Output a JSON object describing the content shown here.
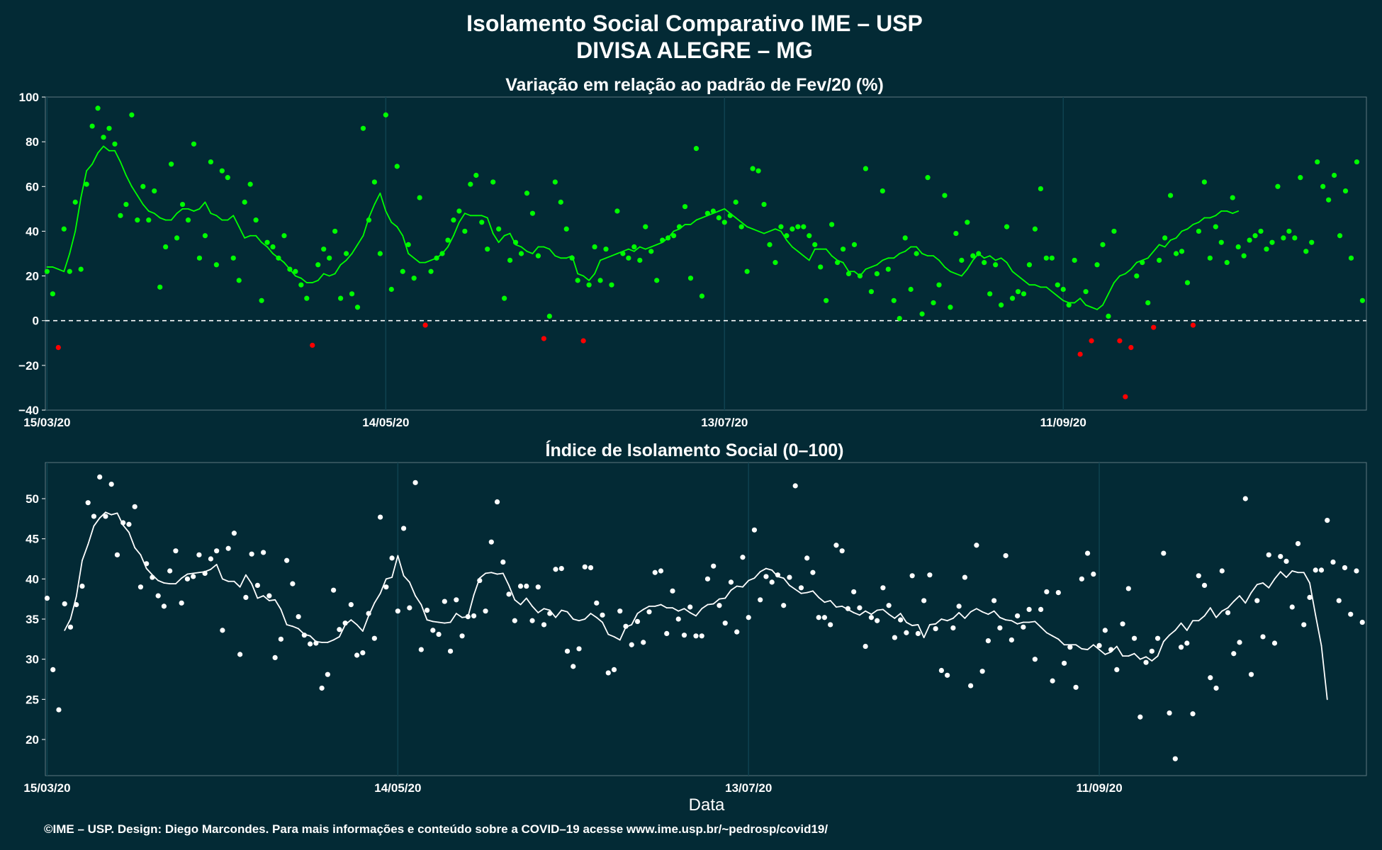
{
  "title": "Isolamento Social Comparativo IME – USP",
  "subtitle": "DIVISA ALEGRE – MG",
  "xlabel": "Data",
  "footer": "©IME – USP. Design: Diego Marcondes. Para mais informações e conteúdo sobre a COVID–19 acesse www.ime.usp.br/~pedrosp/covid19/",
  "colors": {
    "background": "#032a35",
    "positive": "#00ff00",
    "negative": "#ff0000",
    "index": "#ffffff"
  },
  "chart_data": [
    {
      "type": "scatter",
      "title": "Variação em relação ao padrão de Fev/20 (%)",
      "x_ticks": [
        "15/03/20",
        "14/05/20",
        "13/07/20",
        "11/09/20"
      ],
      "y_ticks": [
        "100",
        "80",
        "60",
        "40",
        "20",
        "0",
        "−20",
        "−40"
      ],
      "ylim": [
        -40,
        100
      ],
      "reference_line": 0,
      "grid": true,
      "first_date": "15/03/20",
      "values": [
        22,
        12,
        -12,
        41,
        22,
        53,
        23,
        61,
        87,
        95,
        82,
        86,
        79,
        47,
        52,
        92,
        45,
        60,
        45,
        58,
        15,
        33,
        70,
        37,
        52,
        45,
        79,
        28,
        38,
        71,
        25,
        67,
        64,
        28,
        18,
        53,
        61,
        45,
        9,
        35,
        33,
        28,
        38,
        23,
        22,
        16,
        10,
        -11,
        25,
        32,
        28,
        40,
        10,
        30,
        12,
        6,
        86,
        45,
        62,
        30,
        92,
        14,
        69,
        22,
        34,
        19,
        55,
        -2,
        22,
        28,
        30,
        36,
        45,
        49,
        40,
        61,
        65,
        44,
        32,
        62,
        41,
        10,
        27,
        35,
        30,
        57,
        48,
        29,
        -8,
        2,
        62,
        53,
        41,
        28,
        18,
        -9,
        16,
        33,
        18,
        32,
        16,
        49,
        30,
        28,
        33,
        27,
        42,
        31,
        18,
        36,
        37,
        38,
        42,
        51,
        19,
        77,
        11,
        48,
        49,
        46,
        44,
        47,
        53,
        42,
        22,
        68,
        67,
        52,
        34,
        26,
        42,
        38,
        41,
        42,
        42,
        38,
        34,
        24,
        9,
        43,
        26,
        32,
        21,
        34,
        20,
        68,
        13,
        21,
        58,
        23,
        9,
        1,
        37,
        14,
        30,
        3,
        64,
        8,
        16,
        56,
        6,
        39,
        27,
        44,
        29,
        30,
        26,
        12,
        25,
        7,
        42,
        10,
        13,
        12,
        25,
        41,
        59,
        28,
        28,
        16,
        14,
        7,
        27,
        -15,
        13,
        -9,
        25,
        34,
        2,
        40,
        -9,
        -34,
        -12,
        20,
        26,
        8,
        -3,
        27,
        37,
        56,
        30,
        31,
        17,
        -2,
        40,
        62,
        28,
        42,
        35,
        26,
        55,
        33,
        29,
        36,
        38,
        40,
        32,
        35,
        60,
        37,
        40,
        37,
        64,
        31,
        35,
        71,
        60,
        54,
        65,
        38,
        58,
        28,
        71,
        9
      ],
      "moving_average": [
        24,
        24,
        23,
        22,
        30,
        40,
        55,
        67,
        70,
        75,
        78,
        76,
        76,
        71,
        65,
        60,
        56,
        52,
        49,
        48,
        46,
        45,
        45,
        48,
        50,
        50,
        49,
        50,
        53,
        48,
        47,
        45,
        45,
        47,
        42,
        37,
        38,
        38,
        35,
        33,
        30,
        28,
        26,
        23,
        20,
        19,
        17,
        17,
        18,
        21,
        20,
        21,
        25,
        27,
        30,
        34,
        38,
        46,
        52,
        57,
        49,
        44,
        42,
        38,
        30,
        28,
        26,
        26,
        27,
        28,
        30,
        33,
        38,
        44,
        48,
        47,
        47,
        47,
        46,
        39,
        35,
        38,
        39,
        34,
        33,
        31,
        30,
        33,
        33,
        32,
        29,
        28,
        28,
        29,
        21,
        20,
        18,
        21,
        27,
        28,
        29,
        30,
        31,
        32,
        31,
        33,
        32,
        33,
        34,
        35,
        37,
        40,
        41,
        43,
        43,
        45,
        46,
        47,
        48,
        49,
        50,
        48,
        46,
        44,
        42,
        41,
        40,
        39,
        40,
        41,
        40,
        36,
        33,
        31,
        29,
        27,
        32,
        32,
        32,
        29,
        27,
        26,
        22,
        22,
        20,
        23,
        24,
        25,
        27,
        28,
        28,
        30,
        31,
        33,
        33,
        30,
        29,
        29,
        27,
        24,
        22,
        21,
        20,
        23,
        27,
        30,
        28,
        29,
        27,
        28,
        26,
        22,
        20,
        18,
        16,
        16,
        15,
        15,
        13,
        11,
        9,
        8,
        8,
        10,
        7,
        6,
        5,
        7,
        12,
        17,
        20,
        21,
        23,
        26,
        27,
        28,
        31,
        34,
        33,
        36,
        37,
        40,
        41,
        43,
        44,
        46,
        46,
        47,
        49,
        49,
        48,
        49
      ]
    },
    {
      "type": "scatter",
      "title": "Índice de Isolamento Social (0–100)",
      "x_ticks": [
        "15/03/20",
        "14/05/20",
        "13/07/20",
        "11/09/20"
      ],
      "y_ticks": [
        "50",
        "45",
        "40",
        "35",
        "30",
        "25",
        "20"
      ],
      "ylim": [
        15.5,
        54.5
      ],
      "grid": true,
      "first_date": "15/03/20",
      "values": [
        37.6,
        28.7,
        23.7,
        36.9,
        34.0,
        36.8,
        39.1,
        49.5,
        47.8,
        52.7,
        47.8,
        51.8,
        43.0,
        47.0,
        46.8,
        49.0,
        39.0,
        41.9,
        40.2,
        37.9,
        36.6,
        41.0,
        43.5,
        37.0,
        40.0,
        40.3,
        43.0,
        40.7,
        42.5,
        43.5,
        33.6,
        43.8,
        45.7,
        30.6,
        37.7,
        43.1,
        39.2,
        43.3,
        37.9,
        30.2,
        32.5,
        42.3,
        39.4,
        35.3,
        33.0,
        31.9,
        32.0,
        26.4,
        28.1,
        38.6,
        33.7,
        34.5,
        36.8,
        30.5,
        30.8,
        35.7,
        32.6,
        47.7,
        39.0,
        42.6,
        36.0,
        46.3,
        36.4,
        52.0,
        31.2,
        36.1,
        33.6,
        33.1,
        37.2,
        31.0,
        37.4,
        32.9,
        35.3,
        35.4,
        39.8,
        36.0,
        44.6,
        49.6,
        42.1,
        38.1,
        34.8,
        39.1,
        39.1,
        34.8,
        39.0,
        34.3,
        35.7,
        41.2,
        41.3,
        31.0,
        29.1,
        31.3,
        41.5,
        41.4,
        37.0,
        35.5,
        28.3,
        28.7,
        36.0,
        34.1,
        31.8,
        34.7,
        32.1,
        35.9,
        40.8,
        41.0,
        33.2,
        38.5,
        35.0,
        33.0,
        36.5,
        32.9,
        32.9,
        40.0,
        41.6,
        36.7,
        34.5,
        39.6,
        33.4,
        42.7,
        35.2,
        46.1,
        37.4,
        40.3,
        39.6,
        40.5,
        36.7,
        40.2,
        51.6,
        38.9,
        42.6,
        40.8,
        35.2,
        35.2,
        34.3,
        44.2,
        43.5,
        36.3,
        38.4,
        36.4,
        31.6,
        35.2,
        34.8,
        38.9,
        36.7,
        32.7,
        34.9,
        33.3,
        40.4,
        33.2,
        37.3,
        40.5,
        33.8,
        28.6,
        28.0,
        33.9,
        36.6,
        40.2,
        26.7,
        44.2,
        28.5,
        32.3,
        37.3,
        33.9,
        42.9,
        32.4,
        35.4,
        34.0,
        36.2,
        30.0,
        36.2,
        38.4,
        27.3,
        38.3,
        29.5,
        31.5,
        26.5,
        40.0,
        43.2,
        40.6,
        31.7,
        33.6,
        31.2,
        28.7,
        34.4,
        38.8,
        32.6,
        22.8,
        29.6,
        31.0,
        32.6,
        43.2,
        23.3,
        17.6,
        31.5,
        32.0,
        23.2,
        40.4,
        39.2,
        27.7,
        26.4,
        41.0,
        35.8,
        30.7,
        32.1,
        50.0,
        28.1,
        37.3,
        32.8,
        43.0,
        32.0,
        42.8,
        42.2,
        36.5,
        44.4,
        34.3,
        37.7,
        41.1,
        41.1,
        47.3,
        42.1,
        37.3,
        41.4,
        35.6,
        41.0,
        34.6
      ],
      "moving_average": [
        null,
        null,
        null,
        33.6,
        35.0,
        37.8,
        42.3,
        44.3,
        46.6,
        47.6,
        48.3,
        48.0,
        48.2,
        46.7,
        45.8,
        43.9,
        43.0,
        41.3,
        40.5,
        39.8,
        39.5,
        39.4,
        39.4,
        40.1,
        40.6,
        40.7,
        40.8,
        40.9,
        41.2,
        41.8,
        40.0,
        39.7,
        39.7,
        39.0,
        40.5,
        39.4,
        37.6,
        37.9,
        37.3,
        37.4,
        36.2,
        34.3,
        34.1,
        33.8,
        33.1,
        32.9,
        32.2,
        32.1,
        32.1,
        32.4,
        32.8,
        34.3,
        34.9,
        34.3,
        33.5,
        35.4,
        37.0,
        38.2,
        40.0,
        40.2,
        42.9,
        40.4,
        39.6,
        37.9,
        36.8,
        34.9,
        34.7,
        34.6,
        34.5,
        34.6,
        35.7,
        35.2,
        35.3,
        38.0,
        40.1,
        40.7,
        40.8,
        40.6,
        40.7,
        39.2,
        37.4,
        36.8,
        37.6,
        36.6,
        35.8,
        36.3,
        36.1,
        35.2,
        36.1,
        35.9,
        35.0,
        34.8,
        35.0,
        35.7,
        35.2,
        34.6,
        33.1,
        32.8,
        32.4,
        34.0,
        34.3,
        35.7,
        36.2,
        36.6,
        36.6,
        36.8,
        36.4,
        36.4,
        36.0,
        36.3,
        35.8,
        35.4,
        36.3,
        36.8,
        36.9,
        37.5,
        37.6,
        38.6,
        39.1,
        39.0,
        39.8,
        40.1,
        40.9,
        41.3,
        41.1,
        40.3,
        40.1,
        39.2,
        38.7,
        38.2,
        38.3,
        38.5,
        37.7,
        37.1,
        37.3,
        36.5,
        36.6,
        36.2,
        35.8,
        35.5,
        36.0,
        35.6,
        36.1,
        36.2,
        35.6,
        35.1,
        35.7,
        34.6,
        34.2,
        34.3,
        32.7,
        34.3,
        34.4,
        35.0,
        34.8,
        35.1,
        35.8,
        35.1,
        35.9,
        36.3,
        35.9,
        35.6,
        36.0,
        35.2,
        34.9,
        34.8,
        34.4,
        34.6,
        34.6,
        34.7,
        34.0,
        33.3,
        32.9,
        32.5,
        31.8,
        31.8,
        31.8,
        31.3,
        31.2,
        31.8,
        31.2,
        30.6,
        30.9,
        31.6,
        30.4,
        30.4,
        30.7,
        30.0,
        30.3,
        29.8,
        30.4,
        32.2,
        33.0,
        33.6,
        34.5,
        33.6,
        34.8,
        34.8,
        35.4,
        36.4,
        35.2,
        36.0,
        36.4,
        37.2,
        37.9,
        37.0,
        38.3,
        39.3,
        39.5,
        38.9,
        40.0,
        40.9,
        40.2,
        41.0,
        40.8,
        40.8,
        39.5,
        35.5,
        31.7,
        25.0
      ]
    }
  ]
}
